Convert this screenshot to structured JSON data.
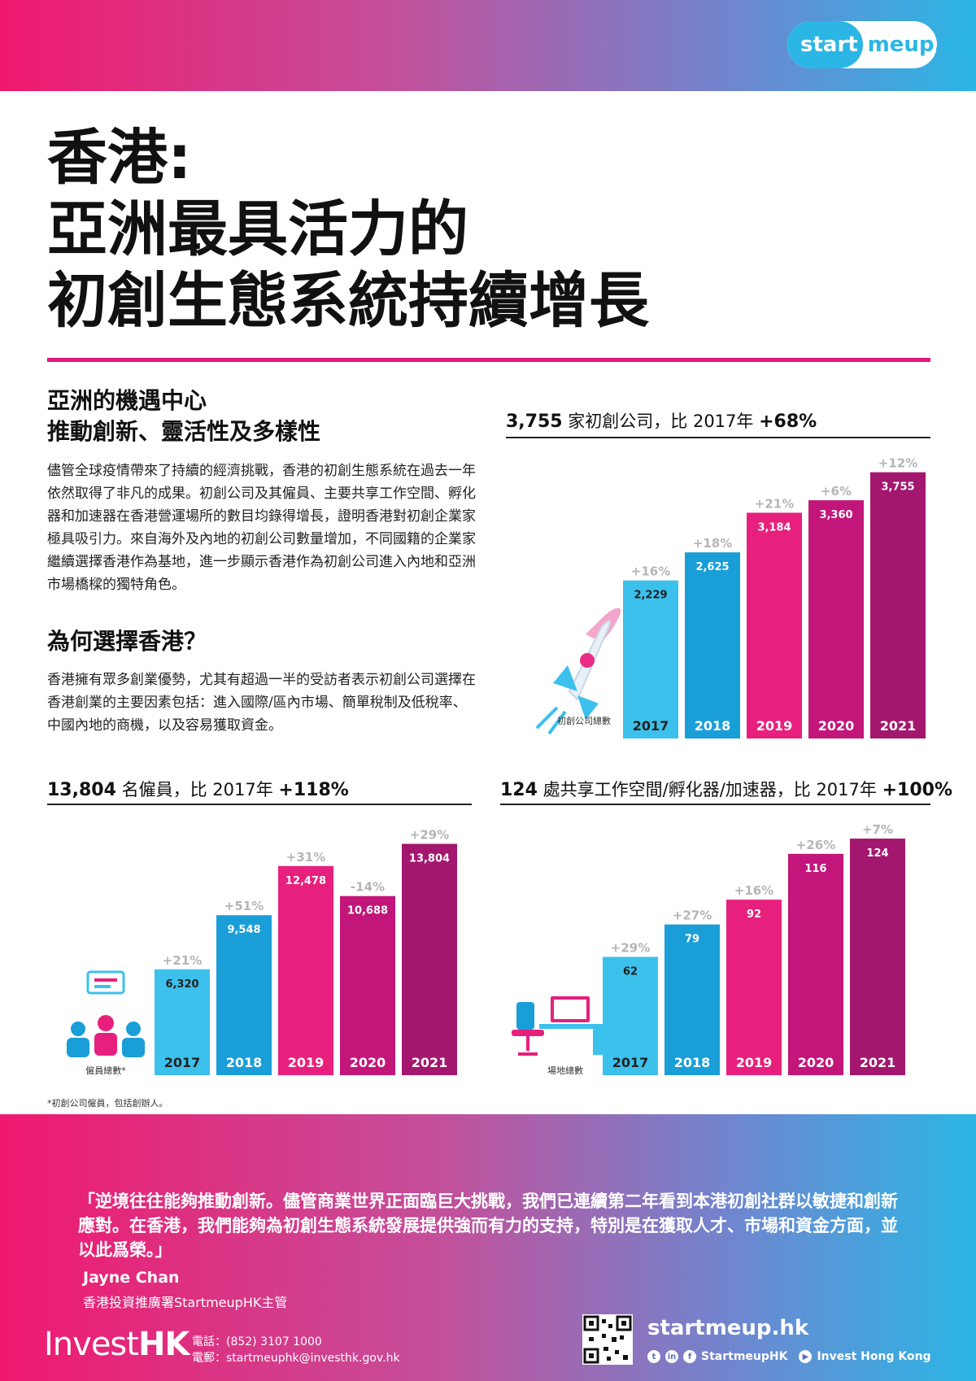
{
  "brand": {
    "part1": "start",
    "part2": "meup.hk"
  },
  "title": {
    "line1": "香港:",
    "line2": "亞洲最具活力的",
    "line3": "初創生態系統持續增長"
  },
  "section1": {
    "heading_line1": "亞洲的機遇中心",
    "heading_line2": "推動創新、靈活性及多樣性",
    "body": "儘管全球疫情帶來了持續的經濟挑戰，香港的初創生態系統在過去一年依然取得了非凡的成果。初創公司及其僱員、主要共享工作空間、孵化器和加速器在香港營運場所的數目均錄得增長，證明香港對初創企業家極具吸引力。來自海外及內地的初創公司數量增加，不同國籍的企業家繼續選擇香港作為基地，進一步顯示香港作為初創公司進入內地和亞洲市場橋樑的獨特角色。"
  },
  "section2": {
    "heading": "為何選擇香港？",
    "body": "香港擁有眾多創業優勢，尤其有超過一半的受訪者表示初創公司選擇在香港創業的主要因素包括：進入國際/區內市場、簡單稅制及低稅率、中國內地的商機，以及容易獲取資金。"
  },
  "stats": {
    "startups": {
      "value": "3,755",
      "text": "家初創公司，比 2017年",
      "change": "+68%"
    },
    "employees": {
      "value": "13,804",
      "text": "名僱員，比 2017年",
      "change": "+118%"
    },
    "spaces": {
      "value": "124",
      "text": "處共享工作空間/孵化器/加速器，比 2017年",
      "change": "+100%"
    }
  },
  "chart_data": [
    {
      "type": "bar",
      "categories": [
        "2017",
        "2018",
        "2019",
        "2020",
        "2021"
      ],
      "values": [
        2229,
        2625,
        3184,
        3360,
        3755
      ],
      "value_labels": [
        "2,229",
        "2,625",
        "3,184",
        "3,360",
        "3,755"
      ],
      "growth_labels": [
        "+16%",
        "+18%",
        "+21%",
        "+6%",
        "+12%"
      ],
      "xlabel": "初創公司總數",
      "ylim": [
        0,
        3900
      ]
    },
    {
      "type": "bar",
      "categories": [
        "2017",
        "2018",
        "2019",
        "2020",
        "2021"
      ],
      "values": [
        6320,
        9548,
        12478,
        10688,
        13804
      ],
      "value_labels": [
        "6,320",
        "9,548",
        "12,478",
        "10,688",
        "13,804"
      ],
      "growth_labels": [
        "+21%",
        "+51%",
        "+31%",
        "-14%",
        "+29%"
      ],
      "xlabel": "僱員總數*",
      "ylim": [
        0,
        14800
      ]
    },
    {
      "type": "bar",
      "categories": [
        "2017",
        "2018",
        "2019",
        "2020",
        "2021"
      ],
      "values": [
        62,
        79,
        92,
        116,
        124
      ],
      "value_labels": [
        "62",
        "79",
        "92",
        "116",
        "124"
      ],
      "growth_labels": [
        "+29%",
        "+27%",
        "+16%",
        "+26%",
        "+7%"
      ],
      "xlabel": "場地總數",
      "ylim": [
        0,
        130
      ]
    }
  ],
  "bar_colors": [
    "#3cc0ec",
    "#1a9ed8",
    "#e7207e",
    "#c2167a",
    "#a3176e"
  ],
  "growth_color": "#b5b5b5",
  "footnote": "*初創公司僱員，包括創辦人。",
  "quote": "「逆境往往能夠推動創新。儘管商業世界正面臨巨大挑戰，我們已連續第二年看到本港初創社群以敏捷和創新應對。在香港，我們能夠為初創生態系統發展提供強而有力的支持，特別是在獲取人才、市場和資金方面，並以此爲榮。」",
  "author": {
    "name": "Jayne Chan",
    "role": "香港投資推廣署StartmeupHK主管"
  },
  "footer": {
    "logo_part1": "Invest",
    "logo_part2": "HK",
    "phone": "電話：(852) 3107 1000",
    "email": "電郵：startmeuphk@investhk.gov.hk",
    "site": "startmeup.hk",
    "social_handle": "StartmeupHK",
    "youtube": "Invest Hong Kong"
  }
}
